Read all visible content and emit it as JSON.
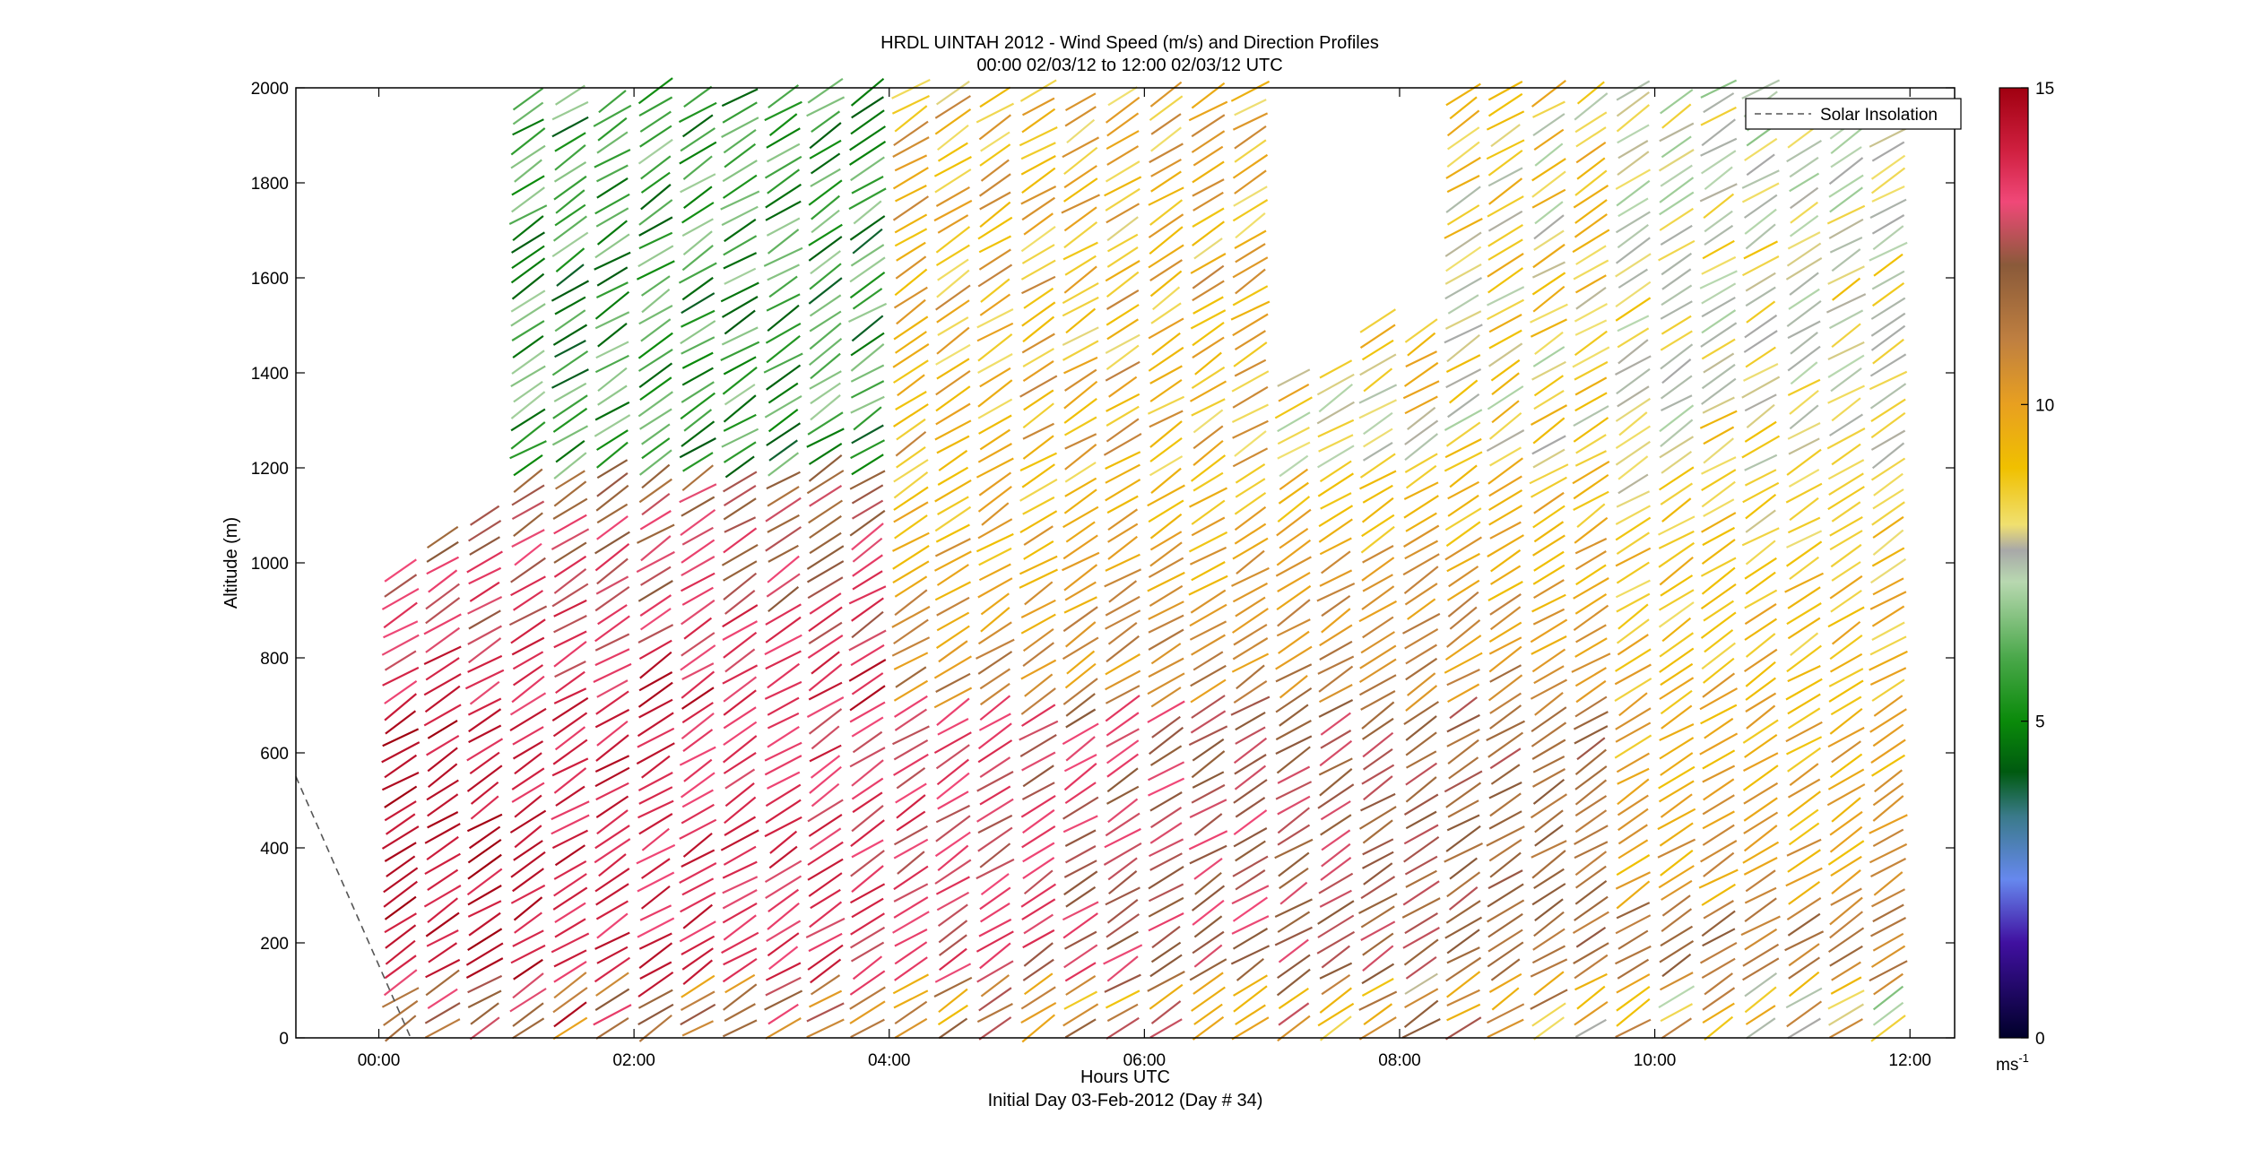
{
  "chart_data": {
    "type": "scatter",
    "title": "HRDL UINTAH 2012 - Wind Speed (m/s) and Direction Profiles",
    "subtitle": "00:00 02/03/12 to 12:00 02/03/12  UTC",
    "xlabel": "Hours UTC",
    "xlabel2": "Initial Day 03-Feb-2012 (Day # 34)",
    "ylabel": "Altitude (m)",
    "xlim_hours": [
      -0.65,
      12.35
    ],
    "ylim": [
      0,
      2000
    ],
    "x_ticks": [
      {
        "value": 0,
        "label": "00:00"
      },
      {
        "value": 2,
        "label": "02:00"
      },
      {
        "value": 4,
        "label": "04:00"
      },
      {
        "value": 6,
        "label": "06:00"
      },
      {
        "value": 8,
        "label": "08:00"
      },
      {
        "value": 10,
        "label": "10:00"
      },
      {
        "value": 12,
        "label": "12:00"
      }
    ],
    "y_ticks": [
      {
        "value": 0,
        "label": "0"
      },
      {
        "value": 200,
        "label": "200"
      },
      {
        "value": 400,
        "label": "400"
      },
      {
        "value": 600,
        "label": "600"
      },
      {
        "value": 800,
        "label": "800"
      },
      {
        "value": 1000,
        "label": "1000"
      },
      {
        "value": 1200,
        "label": "1200"
      },
      {
        "value": 1400,
        "label": "1400"
      },
      {
        "value": 1600,
        "label": "1600"
      },
      {
        "value": 1800,
        "label": "1800"
      },
      {
        "value": 2000,
        "label": "2000"
      }
    ],
    "legend": {
      "position": "top-right",
      "entries": [
        {
          "label": "Solar Insolation",
          "style": "dashed",
          "color": "#555555"
        }
      ]
    },
    "colorbar": {
      "label": "ms",
      "label_exponent": "-1",
      "range": [
        0,
        15
      ],
      "ticks": [
        {
          "value": 0,
          "label": "0"
        },
        {
          "value": 5,
          "label": "5"
        },
        {
          "value": 10,
          "label": "10"
        },
        {
          "value": 15,
          "label": "15"
        }
      ],
      "colors": [
        {
          "at": 0.0,
          "color": "#00002a"
        },
        {
          "at": 1.5,
          "color": "#4010a0"
        },
        {
          "at": 2.5,
          "color": "#6688ee"
        },
        {
          "at": 3.5,
          "color": "#3a7a8a"
        },
        {
          "at": 4.2,
          "color": "#005a10"
        },
        {
          "at": 5.0,
          "color": "#0a8a0a"
        },
        {
          "at": 6.0,
          "color": "#4aa84a"
        },
        {
          "at": 7.2,
          "color": "#b8d8b0"
        },
        {
          "at": 7.7,
          "color": "#a8a8a8"
        },
        {
          "at": 8.1,
          "color": "#f0e070"
        },
        {
          "at": 9.0,
          "color": "#f0c000"
        },
        {
          "at": 10.0,
          "color": "#e8a020"
        },
        {
          "at": 11.0,
          "color": "#c08040"
        },
        {
          "at": 12.2,
          "color": "#8a5a3a"
        },
        {
          "at": 13.2,
          "color": "#f04878"
        },
        {
          "at": 14.0,
          "color": "#d02040"
        },
        {
          "at": 15.0,
          "color": "#a00010"
        }
      ]
    },
    "solar_insolation_line": [
      {
        "x": -0.65,
        "y": 550
      },
      {
        "x": 0.25,
        "y": 0
      }
    ],
    "profile_times_hours": [
      0.17,
      0.5,
      0.83,
      1.17,
      1.5,
      1.83,
      2.17,
      2.5,
      2.83,
      3.17,
      3.5,
      3.83,
      4.17,
      4.5,
      4.83,
      5.17,
      5.5,
      5.83,
      6.17,
      6.5,
      6.83,
      7.17,
      7.5,
      7.83,
      8.17,
      8.5,
      8.83,
      9.17,
      9.5,
      9.83,
      10.17,
      10.5,
      10.83,
      11.17,
      11.5,
      11.83
    ]
  }
}
